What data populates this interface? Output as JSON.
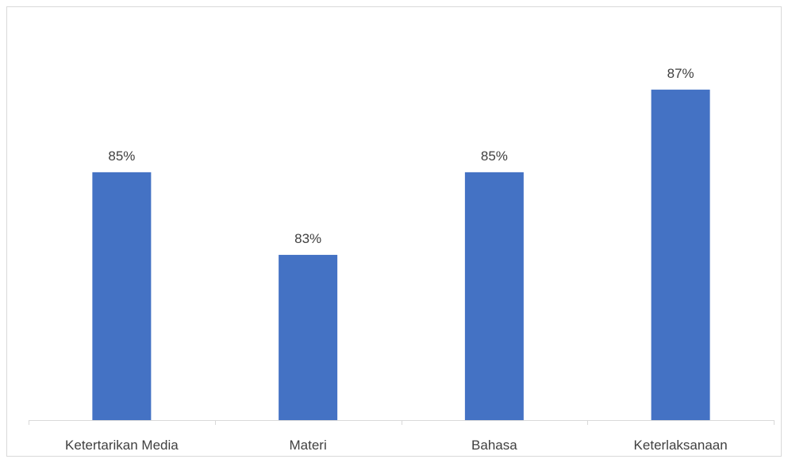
{
  "chart_data": {
    "type": "bar",
    "categories": [
      "Ketertarikan Media",
      "Materi",
      "Bahasa",
      "Keterlaksanaan"
    ],
    "values": [
      85,
      83,
      85,
      87
    ],
    "value_labels": [
      "85%",
      "83%",
      "85%",
      "87%"
    ],
    "unit": "%",
    "title": "",
    "xlabel": "",
    "ylabel": "",
    "ylim": [
      79,
      88.4
    ],
    "grid": false,
    "legend": "none",
    "colors": {
      "bar": "#4472C4",
      "axis": "#D9D9D9",
      "frame": "#D9D9D9",
      "text": "#404040"
    }
  }
}
